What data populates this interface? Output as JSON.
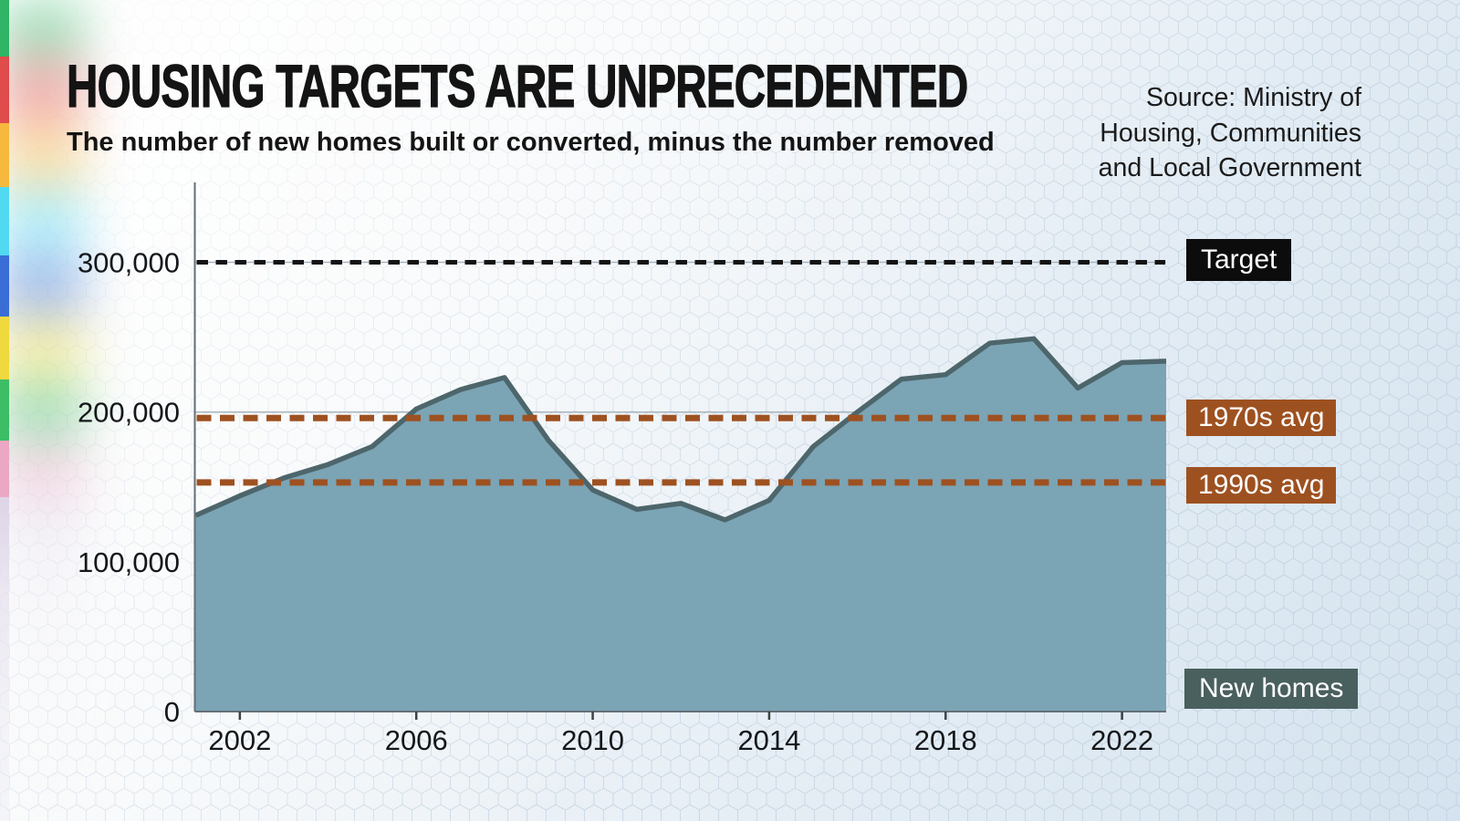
{
  "header": {
    "title": "HOUSING TARGETS ARE UNPRECEDENTED",
    "subtitle": "The number of new homes built or converted, minus the number removed",
    "source_lines": [
      "Source: Ministry of",
      "Housing, Communities",
      "and Local Government"
    ]
  },
  "annotations": {
    "target_label": "Target",
    "avg1970s_label": "1970s avg",
    "avg1990s_label": "1990s avg",
    "series_label": "New homes"
  },
  "chart_data": {
    "type": "area",
    "title": "Housing targets are unprecedented",
    "subtitle": "The number of new homes built or converted, minus the number removed",
    "series_name": "New homes",
    "x": [
      2001,
      2002,
      2003,
      2004,
      2005,
      2006,
      2007,
      2008,
      2009,
      2010,
      2011,
      2012,
      2013,
      2014,
      2015,
      2016,
      2017,
      2018,
      2019,
      2020,
      2021,
      2022,
      2023
    ],
    "values": [
      131000,
      144000,
      156000,
      165000,
      177000,
      202000,
      215000,
      223000,
      181000,
      148000,
      135000,
      139000,
      128000,
      141000,
      177000,
      200000,
      222000,
      225000,
      246000,
      249000,
      216000,
      233000,
      234000
    ],
    "xlim": [
      2001,
      2023
    ],
    "ylim": [
      0,
      340000
    ],
    "xticks": [
      2002,
      2006,
      2010,
      2014,
      2018,
      2022
    ],
    "yticks": [
      0,
      100000,
      200000,
      300000
    ],
    "ytick_labels": [
      "0",
      "100,000",
      "200,000",
      "300,000"
    ],
    "grid": "horizontal",
    "legend_position": "right",
    "reference_lines": [
      {
        "label": "Target",
        "value": 300000,
        "style": "dashed",
        "color": "#141414"
      },
      {
        "label": "1970s avg",
        "value": 196000,
        "style": "dashed",
        "color": "#9E5120"
      },
      {
        "label": "1990s avg",
        "value": 153000,
        "style": "dashed",
        "color": "#9E5120"
      }
    ],
    "colors": {
      "area_fill": "#7BA4B5",
      "area_stroke": "#4D666B",
      "target_label_bg": "#0c0c0c",
      "avg_label_bg": "#9E5120",
      "series_label_bg": "#49605E",
      "gridline": "#a8b4bd",
      "axis": "#626f77"
    }
  }
}
